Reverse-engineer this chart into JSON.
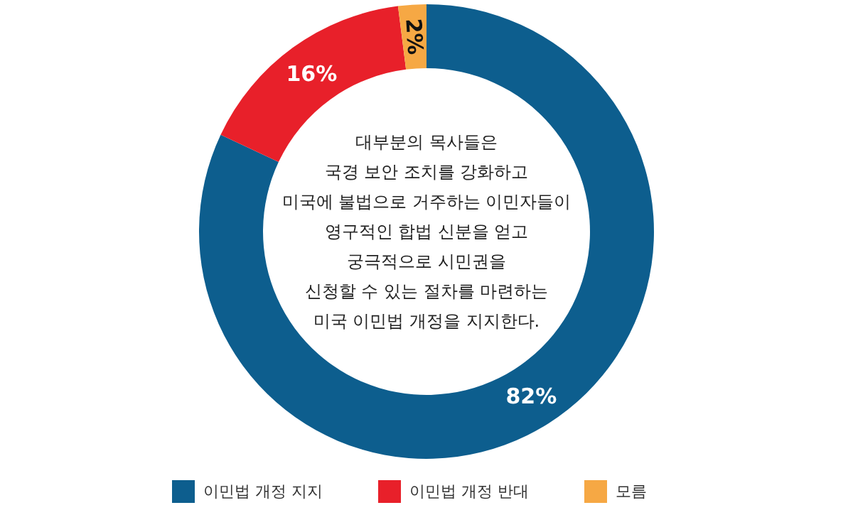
{
  "chart_data": {
    "type": "donut",
    "categories": [
      "이민법 개정 지지",
      "이민법 개정 반대",
      "모름"
    ],
    "values": [
      82,
      16,
      2
    ],
    "colors": [
      "#0d5e8e",
      "#e8202a",
      "#f6a844"
    ],
    "value_labels": [
      "82%",
      "16%",
      "2%"
    ],
    "annotations": [
      "대부분의 목사들은\n국경 보안 조치를 강화하고\n미국에 불법으로 거주하는 이민자들이\n영구적인 합법 신분을 얻고\n궁극적으로 시민권을\n신청할 수 있는 절차를 마련하는\n미국 이민법 개정을 지지한다."
    ],
    "legend": "bottom"
  }
}
